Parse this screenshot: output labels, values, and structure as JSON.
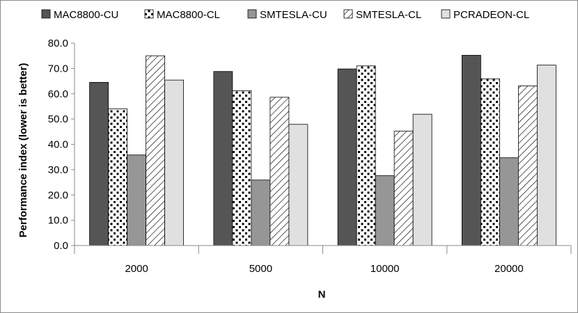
{
  "chart_data": {
    "type": "bar",
    "title": "",
    "xlabel": "N",
    "ylabel": "Performance index (lower is better)",
    "categories": [
      "2000",
      "5000",
      "10000",
      "20000"
    ],
    "ylim": [
      0,
      80
    ],
    "yticks": [
      "0.0",
      "10.0",
      "20.0",
      "30.0",
      "40.0",
      "50.0",
      "60.0",
      "70.0",
      "80.0"
    ],
    "ytick_values": [
      0,
      10,
      20,
      30,
      40,
      50,
      60,
      70,
      80
    ],
    "grid": false,
    "legend_position": "top",
    "series": [
      {
        "name": "MAC8800-CU",
        "values": [
          64.5,
          68.8,
          69.8,
          75.2
        ],
        "color": "#555555",
        "pattern": "solid"
      },
      {
        "name": "MAC8800-CL",
        "values": [
          54.0,
          61.2,
          71.0,
          65.9
        ],
        "color": "#ffffff",
        "pattern": "dots"
      },
      {
        "name": "SMTESLA-CU",
        "values": [
          35.8,
          25.9,
          27.6,
          34.7
        ],
        "color": "#969696",
        "pattern": "solid"
      },
      {
        "name": "SMTESLA-CL",
        "values": [
          75.0,
          58.6,
          45.2,
          63.1
        ],
        "color": "#ffffff",
        "pattern": "diagonal"
      },
      {
        "name": "PCRADEON-CL",
        "values": [
          65.4,
          47.9,
          51.9,
          71.3
        ],
        "color": "#e0e0e0",
        "pattern": "solid"
      }
    ]
  }
}
